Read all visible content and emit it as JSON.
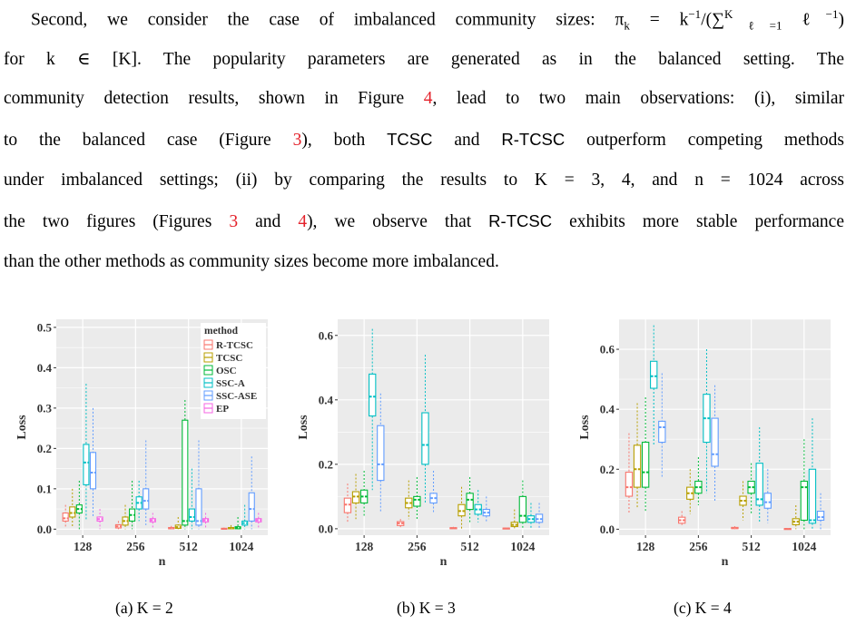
{
  "paragraph": {
    "lines": [
      {
        "parts": [
          {
            "t": "Second, we consider the case of imbalanced community sizes:  π"
          },
          {
            "t": "k",
            "sub": true
          },
          {
            "t": " = k"
          },
          {
            "t": "−1",
            "sup": true
          },
          {
            "t": "/(∑"
          },
          {
            "t": "K",
            "sup": true
          },
          {
            "t": "ℓ=1",
            "sub": true
          },
          {
            "t": " ℓ"
          },
          {
            "t": "−1",
            "sup": true
          },
          {
            "t": ")"
          }
        ]
      },
      {
        "parts": [
          {
            "t": "for k ∈ [K].  The popularity parameters are generated as in the balanced setting.  The"
          }
        ]
      },
      {
        "parts": [
          {
            "t": "community detection results, shown in Figure "
          },
          {
            "t": "4",
            "ref": true
          },
          {
            "t": ", lead to two main observations: (i), similar"
          }
        ]
      },
      {
        "parts": [
          {
            "t": "to the balanced case (Figure "
          },
          {
            "t": "3",
            "ref": true
          },
          {
            "t": "), both "
          },
          {
            "t": "TCSC",
            "sans": true
          },
          {
            "t": " and "
          },
          {
            "t": "R-TCSC",
            "sans": true
          },
          {
            "t": " outperform competing methods"
          }
        ]
      },
      {
        "parts": [
          {
            "t": "under imbalanced settings; (ii) by comparing the results to K = 3, 4, and n = 1024 across"
          }
        ]
      },
      {
        "parts": [
          {
            "t": "the two figures (Figures "
          },
          {
            "t": "3",
            "ref": true
          },
          {
            "t": " and "
          },
          {
            "t": "4",
            "ref": true
          },
          {
            "t": "), we observe that "
          },
          {
            "t": "R-TCSC",
            "sans": true
          },
          {
            "t": " exhibits more stable performance"
          }
        ]
      },
      {
        "parts": [
          {
            "t": "than the other methods as community sizes become more imbalanced."
          }
        ]
      }
    ]
  },
  "colors": {
    "R-TCSC": "#f8766d",
    "TCSC": "#b79f00",
    "OSC": "#00ba38",
    "SSC-A": "#00bfc4",
    "SSC-ASE": "#619cff",
    "EP": "#f564e3",
    "panel_bg": "#ebebeb",
    "grid": "#ffffff"
  },
  "chart_data": [
    {
      "type": "box",
      "caption": "(a) K = 2",
      "xlabel": "n",
      "ylabel": "Loss",
      "categories": [
        "128",
        "256",
        "512",
        "1024"
      ],
      "yticks": [
        "0.0",
        "0.1",
        "0.2",
        "0.3",
        "0.4",
        "0.5"
      ],
      "ylim": [
        -0.015,
        0.52
      ],
      "legend": {
        "title": "method",
        "position": "top-right",
        "entries": [
          "R-TCSC",
          "TCSC",
          "OSC",
          "SSC-A",
          "SSC-ASE",
          "EP"
        ]
      },
      "series": [
        {
          "name": "R-TCSC",
          "boxes": [
            [
              0.005,
              0.02,
              0.027,
              0.04,
              0.06
            ],
            [
              0.0,
              0.003,
              0.007,
              0.011,
              0.02
            ],
            [
              0.0,
              0.001,
              0.002,
              0.004,
              0.008
            ],
            [
              0.0,
              0.0,
              0.001,
              0.002,
              0.004
            ]
          ]
        },
        {
          "name": "TCSC",
          "boxes": [
            [
              0.005,
              0.03,
              0.04,
              0.055,
              0.1
            ],
            [
              0.0,
              0.01,
              0.02,
              0.03,
              0.06
            ],
            [
              0.0,
              0.002,
              0.005,
              0.01,
              0.03
            ],
            [
              0.0,
              0.001,
              0.002,
              0.004,
              0.01
            ]
          ]
        },
        {
          "name": "OSC",
          "boxes": [
            [
              0.0,
              0.04,
              0.05,
              0.06,
              0.12
            ],
            [
              0.0,
              0.02,
              0.035,
              0.05,
              0.12
            ],
            [
              0.0,
              0.01,
              0.02,
              0.27,
              0.32
            ],
            [
              0.0,
              0.001,
              0.003,
              0.006,
              0.03
            ]
          ]
        },
        {
          "name": "SSC-A",
          "boxes": [
            [
              0.02,
              0.11,
              0.165,
              0.21,
              0.36
            ],
            [
              0.02,
              0.05,
              0.065,
              0.08,
              0.12
            ],
            [
              0.0,
              0.02,
              0.03,
              0.05,
              0.15
            ],
            [
              0.0,
              0.01,
              0.015,
              0.02,
              0.06
            ]
          ]
        },
        {
          "name": "SSC-ASE",
          "boxes": [
            [
              0.03,
              0.1,
              0.14,
              0.19,
              0.3
            ],
            [
              0.01,
              0.05,
              0.07,
              0.1,
              0.22
            ],
            [
              0.0,
              0.01,
              0.02,
              0.1,
              0.22
            ],
            [
              0.0,
              0.02,
              0.05,
              0.09,
              0.18
            ]
          ]
        },
        {
          "name": "EP",
          "boxes": [
            [
              0.0,
              0.02,
              0.025,
              0.03,
              0.05
            ],
            [
              0.0,
              0.018,
              0.022,
              0.026,
              0.04
            ],
            [
              0.0,
              0.018,
              0.022,
              0.026,
              0.04
            ],
            [
              0.0,
              0.018,
              0.022,
              0.026,
              0.04
            ]
          ]
        }
      ]
    },
    {
      "type": "box",
      "caption": "(b) K = 3",
      "xlabel": "n",
      "ylabel": "Loss",
      "categories": [
        "128",
        "256",
        "512",
        "1024"
      ],
      "yticks": [
        "0.0",
        "0.2",
        "0.4",
        "0.6"
      ],
      "ylim": [
        -0.02,
        0.65
      ],
      "series": [
        {
          "name": "R-TCSC",
          "boxes": [
            [
              0.02,
              0.05,
              0.075,
              0.095,
              0.14
            ],
            [
              0.005,
              0.01,
              0.017,
              0.022,
              0.03
            ],
            [
              0.0,
              0.001,
              0.002,
              0.003,
              0.006
            ],
            [
              0.0,
              0.0,
              0.001,
              0.002,
              0.004
            ]
          ]
        },
        {
          "name": "TCSC",
          "boxes": [
            [
              0.03,
              0.08,
              0.1,
              0.115,
              0.17
            ],
            [
              0.03,
              0.065,
              0.08,
              0.095,
              0.15
            ],
            [
              0.0,
              0.04,
              0.055,
              0.075,
              0.13
            ],
            [
              0.0,
              0.007,
              0.012,
              0.02,
              0.06
            ]
          ]
        },
        {
          "name": "OSC",
          "boxes": [
            [
              0.04,
              0.08,
              0.1,
              0.12,
              0.18
            ],
            [
              0.03,
              0.07,
              0.09,
              0.1,
              0.16
            ],
            [
              0.02,
              0.06,
              0.09,
              0.11,
              0.16
            ],
            [
              0.0,
              0.02,
              0.04,
              0.1,
              0.15
            ]
          ]
        },
        {
          "name": "SSC-A",
          "boxes": [
            [
              0.12,
              0.35,
              0.41,
              0.48,
              0.62
            ],
            [
              0.08,
              0.2,
              0.26,
              0.36,
              0.54
            ],
            [
              0.02,
              0.045,
              0.06,
              0.075,
              0.12
            ],
            [
              0.0,
              0.02,
              0.03,
              0.04,
              0.08
            ]
          ]
        },
        {
          "name": "SSC-ASE",
          "boxes": [
            [
              0.05,
              0.15,
              0.2,
              0.32,
              0.42
            ],
            [
              0.05,
              0.08,
              0.095,
              0.11,
              0.18
            ],
            [
              0.02,
              0.04,
              0.05,
              0.06,
              0.1
            ],
            [
              0.0,
              0.02,
              0.03,
              0.045,
              0.08
            ]
          ]
        }
      ]
    },
    {
      "type": "box",
      "caption": "(c) K = 4",
      "xlabel": "n",
      "ylabel": "Loss",
      "categories": [
        "128",
        "256",
        "512",
        "1024"
      ],
      "yticks": [
        "0.0",
        "0.2",
        "0.4",
        "0.6"
      ],
      "ylim": [
        -0.02,
        0.7
      ],
      "series": [
        {
          "name": "R-TCSC",
          "boxes": [
            [
              0.05,
              0.11,
              0.14,
              0.19,
              0.32
            ],
            [
              0.01,
              0.02,
              0.03,
              0.04,
              0.06
            ],
            [
              0.0,
              0.002,
              0.004,
              0.006,
              0.01
            ],
            [
              0.0,
              0.0,
              0.001,
              0.002,
              0.004
            ]
          ]
        },
        {
          "name": "TCSC",
          "boxes": [
            [
              0.07,
              0.14,
              0.2,
              0.28,
              0.42
            ],
            [
              0.05,
              0.1,
              0.12,
              0.14,
              0.2
            ],
            [
              0.03,
              0.08,
              0.095,
              0.11,
              0.16
            ],
            [
              0.0,
              0.015,
              0.025,
              0.035,
              0.08
            ]
          ]
        },
        {
          "name": "OSC",
          "boxes": [
            [
              0.06,
              0.14,
              0.19,
              0.29,
              0.44
            ],
            [
              0.08,
              0.12,
              0.14,
              0.16,
              0.24
            ],
            [
              0.05,
              0.12,
              0.14,
              0.16,
              0.22
            ],
            [
              0.0,
              0.03,
              0.14,
              0.16,
              0.3
            ]
          ]
        },
        {
          "name": "SSC-A",
          "boxes": [
            [
              0.28,
              0.47,
              0.51,
              0.56,
              0.68
            ],
            [
              0.12,
              0.29,
              0.37,
              0.45,
              0.6
            ],
            [
              0.02,
              0.08,
              0.1,
              0.22,
              0.34
            ],
            [
              0.0,
              0.02,
              0.03,
              0.2,
              0.37
            ]
          ]
        },
        {
          "name": "SSC-ASE",
          "boxes": [
            [
              0.17,
              0.29,
              0.34,
              0.36,
              0.52
            ],
            [
              0.09,
              0.21,
              0.25,
              0.37,
              0.48
            ],
            [
              0.02,
              0.07,
              0.09,
              0.12,
              0.2
            ],
            [
              0.0,
              0.03,
              0.04,
              0.06,
              0.12
            ]
          ]
        }
      ]
    }
  ]
}
